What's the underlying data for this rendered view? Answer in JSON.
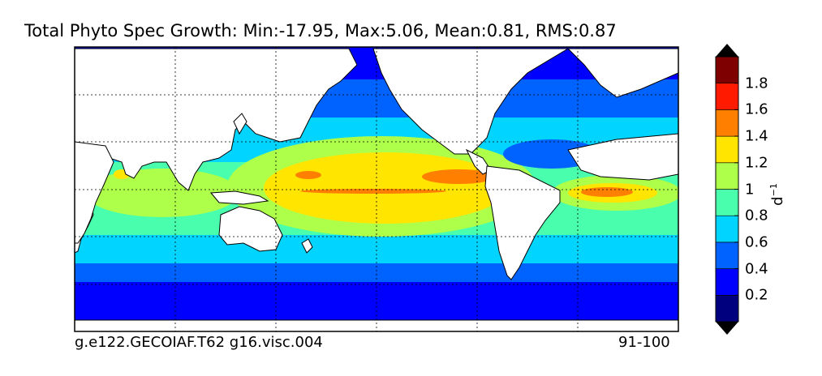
{
  "title": "Total Phyto Spec Growth: Min:-17.95, Max:5.06, Mean:0.81, RMS:0.87",
  "footer_left": "g.e122.GECOIAF.T62 g16.visc.004",
  "footer_right": "91-100",
  "colorbar": {
    "unit_base": "d",
    "unit_exponent": "−1",
    "tick_labels": [
      "0.2",
      "0.4",
      "0.6",
      "0.8",
      "1",
      "1.2",
      "1.4",
      "1.6",
      "1.8"
    ],
    "levels": [
      0,
      0.2,
      0.4,
      0.6,
      0.8,
      1.0,
      1.2,
      1.4,
      1.6,
      1.8,
      2.0
    ],
    "colors": [
      "#00007f",
      "#0000ff",
      "#0062ff",
      "#00d4ff",
      "#49ffad",
      "#adff49",
      "#ffe500",
      "#ff7f00",
      "#ff1a00",
      "#7f0000"
    ],
    "extend": "both",
    "under_color": "#000000",
    "over_color": "#000000"
  },
  "map": {
    "land_color": "#ffffff",
    "grid": "dashed",
    "graticule_lon_step_deg": 60,
    "graticule_lat_step_deg": 30
  }
}
